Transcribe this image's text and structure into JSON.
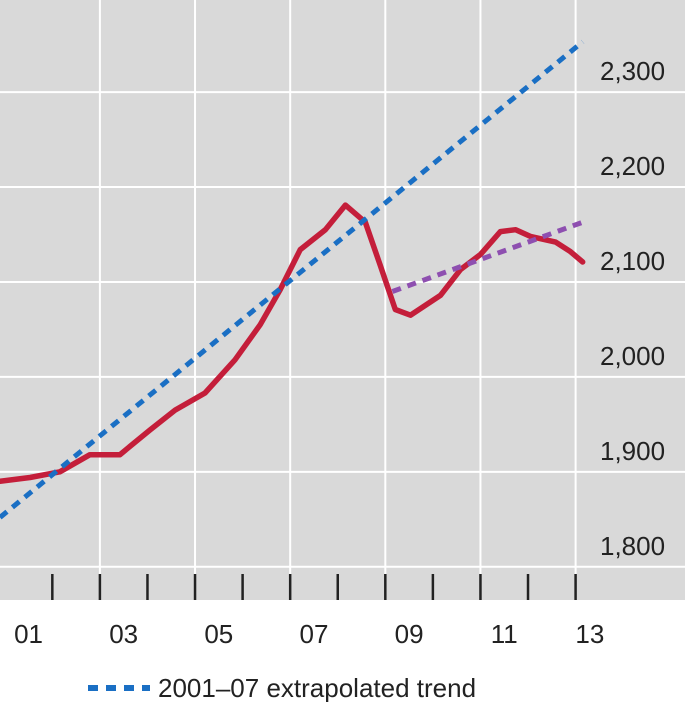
{
  "chart_data": {
    "type": "line",
    "xlim": [
      2000.9,
      2015.3
    ],
    "ylim": [
      1765,
      2397
    ],
    "xticks": [
      {
        "value": 2001.5,
        "label": "01"
      },
      {
        "value": 2003.5,
        "label": "03"
      },
      {
        "value": 2005.5,
        "label": "05"
      },
      {
        "value": 2007.5,
        "label": "07"
      },
      {
        "value": 2009.5,
        "label": "09"
      },
      {
        "value": 2011.5,
        "label": "11"
      },
      {
        "value": 2013.3,
        "label": "13"
      }
    ],
    "xgrid": [
      2003,
      2005,
      2007,
      2009,
      2011,
      2013
    ],
    "xminor": [
      2002,
      2003,
      2004,
      2005,
      2006,
      2007,
      2008,
      2009,
      2010,
      2011,
      2012,
      2013
    ],
    "yticks": [
      {
        "value": 1800,
        "label": "1,800"
      },
      {
        "value": 1900,
        "label": "1,900"
      },
      {
        "value": 2000,
        "label": "2,000"
      },
      {
        "value": 2100,
        "label": "2,100"
      },
      {
        "value": 2200,
        "label": "2,200"
      },
      {
        "value": 2300,
        "label": "2,300"
      }
    ],
    "grid": true,
    "series": [
      {
        "color": "#c41e3a",
        "style": "solid",
        "x": [
          2000.9,
          2001.53,
          2002.16,
          2002.79,
          2003.42,
          2004.05,
          2004.58,
          2005.21,
          2005.84,
          2006.37,
          2006.79,
          2007.21,
          2007.74,
          2008.16,
          2008.58,
          2008.89,
          2009.21,
          2009.53,
          2010.16,
          2010.58,
          2011.0,
          2011.42,
          2011.74,
          2012.05,
          2012.58,
          2012.89,
          2013.15
        ],
        "values": [
          1890,
          1894,
          1900,
          1918,
          1918,
          1944,
          1965,
          1983,
          2018,
          2055,
          2092,
          2134,
          2155,
          2181,
          2163,
          2118,
          2071,
          2065,
          2086,
          2113,
          2129,
          2153,
          2155,
          2148,
          2142,
          2132,
          2121
        ]
      },
      {
        "name": "2001–07 extrapolated trend",
        "color": "#1a6fc4",
        "style": "dashed",
        "x": [
          2000.9,
          2013.15
        ],
        "values": [
          1852,
          2353
        ]
      },
      {
        "color": "#8e4fb0",
        "style": "dashed",
        "x": [
          2009.15,
          2013.15
        ],
        "values": [
          2090,
          2163
        ]
      }
    ]
  }
}
